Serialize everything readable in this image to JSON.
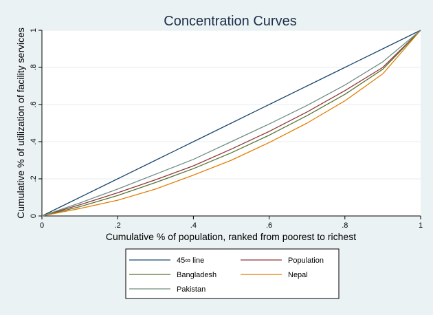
{
  "chart_data": {
    "type": "line",
    "title": "Concentration Curves",
    "xlabel": "Cumulative % of population, ranked from poorest to richest",
    "ylabel": "Cumulative % of utilization of facility services",
    "xlim": [
      0,
      1
    ],
    "ylim": [
      0,
      1
    ],
    "xticks": [
      0,
      0.2,
      0.4,
      0.6,
      0.8,
      1
    ],
    "xtick_labels": [
      "0",
      ".2",
      ".4",
      ".6",
      ".8",
      "1"
    ],
    "yticks": [
      0,
      0.2,
      0.4,
      0.6,
      0.8,
      1
    ],
    "ytick_labels": [
      "0",
      ".2",
      ".4",
      ".6",
      ".8",
      "1"
    ],
    "grid": true,
    "legend_position": "bottom",
    "x": [
      0,
      0.1,
      0.2,
      0.3,
      0.4,
      0.5,
      0.6,
      0.7,
      0.8,
      0.9,
      1.0
    ],
    "series": [
      {
        "name": "45∞ line",
        "color": "#1a476f",
        "values": [
          0,
          0.1,
          0.2,
          0.3,
          0.4,
          0.5,
          0.6,
          0.7,
          0.8,
          0.9,
          1.0
        ]
      },
      {
        "name": "Population",
        "color": "#90353b",
        "values": [
          0,
          0.06,
          0.125,
          0.195,
          0.27,
          0.36,
          0.455,
          0.56,
          0.675,
          0.8,
          1.0
        ]
      },
      {
        "name": "Bangladesh",
        "color": "#55752f",
        "values": [
          0,
          0.05,
          0.11,
          0.18,
          0.255,
          0.34,
          0.435,
          0.54,
          0.655,
          0.79,
          1.0
        ]
      },
      {
        "name": "Nepal",
        "color": "#e37e00",
        "values": [
          0,
          0.04,
          0.085,
          0.145,
          0.22,
          0.3,
          0.395,
          0.5,
          0.62,
          0.765,
          1.0
        ]
      },
      {
        "name": "Pakistan",
        "color": "#6e8e84",
        "values": [
          0,
          0.07,
          0.145,
          0.225,
          0.305,
          0.4,
          0.495,
          0.595,
          0.705,
          0.83,
          1.0
        ]
      }
    ]
  }
}
